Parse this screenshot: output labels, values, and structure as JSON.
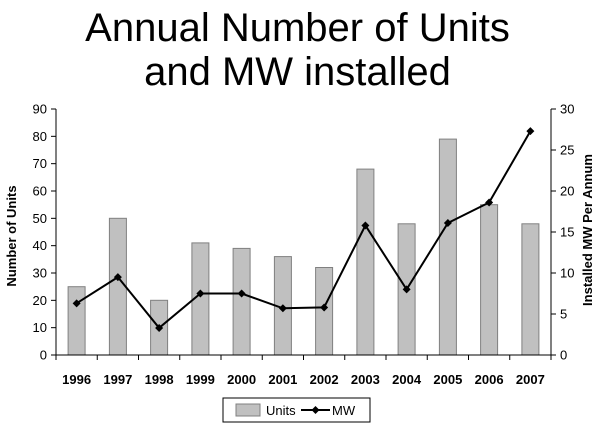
{
  "title_line1": "Annual Number of Units",
  "title_line2": "and MW installed",
  "chart_data": {
    "type": "bar",
    "categories": [
      "1996",
      "1997",
      "1998",
      "1999",
      "2000",
      "2001",
      "2002",
      "2003",
      "2004",
      "2005",
      "2006",
      "2007"
    ],
    "series": [
      {
        "name": "Units",
        "type": "bar",
        "axis": "left",
        "color": "#c0c0c0",
        "values": [
          25,
          50,
          20,
          41,
          39,
          36,
          32,
          68,
          48,
          79,
          55,
          48
        ]
      },
      {
        "name": "MW",
        "type": "line",
        "axis": "right",
        "color": "#000000",
        "values": [
          6.3,
          9.5,
          3.3,
          7.5,
          7.5,
          5.7,
          5.8,
          15.8,
          8.0,
          16.1,
          18.6,
          27.3
        ]
      }
    ],
    "ylabel": "Number of Units",
    "y2label": "Installed MW Per Annum",
    "ylim": [
      0,
      90
    ],
    "y2lim": [
      0,
      30
    ],
    "yticks": [
      "0",
      "10",
      "20",
      "30",
      "40",
      "50",
      "60",
      "70",
      "80",
      "90"
    ],
    "y2ticks": [
      "0",
      "5",
      "10",
      "15",
      "20",
      "25",
      "30"
    ],
    "grid": false,
    "legend": "bottom"
  }
}
